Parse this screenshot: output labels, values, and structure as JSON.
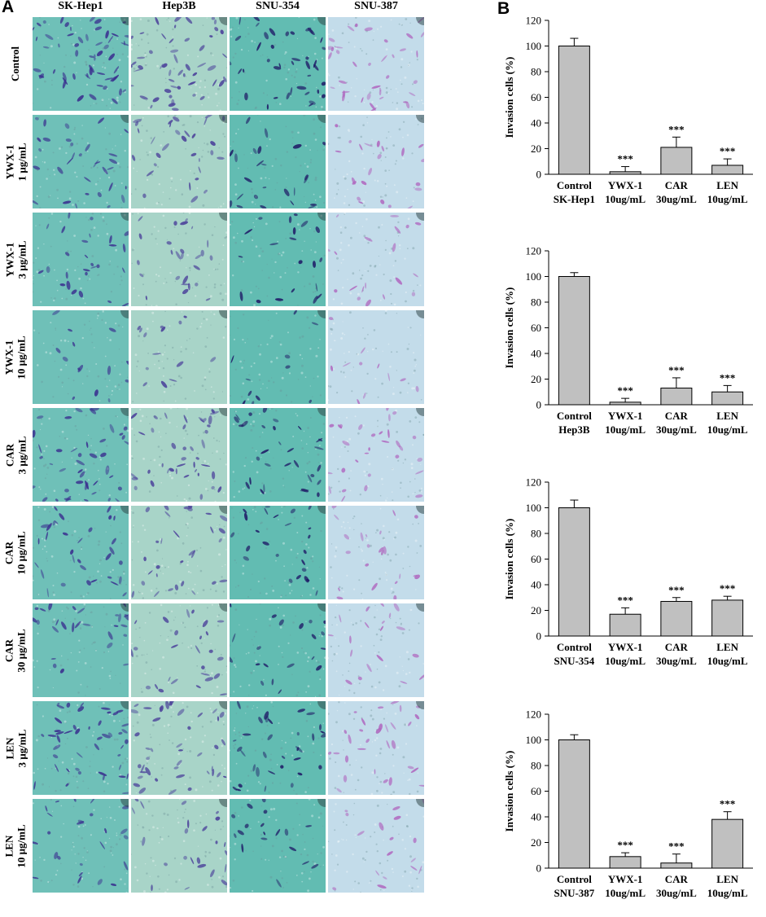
{
  "panels": {
    "a": "A",
    "b": "B"
  },
  "micrographs": {
    "columns": [
      {
        "label": "SK-Hep1",
        "tint": "#6fc0b8",
        "stain": "#3a2f8f",
        "density": 0.85
      },
      {
        "label": "Hep3B",
        "tint": "#a8d4c8",
        "stain": "#4a3f9a",
        "density": 0.8
      },
      {
        "label": "SNU-354",
        "tint": "#62bcb2",
        "stain": "#1f1a66",
        "density": 0.6
      },
      {
        "label": "SNU-387",
        "tint": "#c3dcea",
        "stain": "#b06ac0",
        "density": 0.55
      }
    ],
    "rows": [
      {
        "label": [
          "Control"
        ],
        "level": 1.0
      },
      {
        "label": [
          "YWX-1",
          "1 μg/mL"
        ],
        "level": 0.55
      },
      {
        "label": [
          "YWX-1",
          "3 μg/mL"
        ],
        "level": 0.45
      },
      {
        "label": [
          "YWX-1",
          "10 μg/mL"
        ],
        "level": 0.2
      },
      {
        "label": [
          "CAR",
          "3 μg/mL"
        ],
        "level": 0.75
      },
      {
        "label": [
          "CAR",
          "10 μg/mL"
        ],
        "level": 0.55
      },
      {
        "label": [
          "CAR",
          "30 μg/mL"
        ],
        "level": 0.45
      },
      {
        "label": [
          "LEN",
          "3 μg/mL"
        ],
        "level": 0.8
      },
      {
        "label": [
          "LEN",
          "10 μg/mL"
        ],
        "level": 0.4
      }
    ]
  },
  "chart_data": [
    {
      "type": "bar",
      "ylabel": "Invasion cells  (%)",
      "ylim": [
        0,
        120
      ],
      "yticks": [
        0,
        20,
        40,
        60,
        80,
        100,
        120
      ],
      "categories": [
        [
          "Control",
          "SK-Hep1"
        ],
        [
          "YWX-1",
          "10ug/mL"
        ],
        [
          "CAR",
          "30ug/mL"
        ],
        [
          "LEN",
          "10ug/mL"
        ]
      ],
      "values": [
        100,
        2,
        21,
        7
      ],
      "errors": [
        6,
        4,
        8,
        5
      ],
      "annotations": [
        "",
        "***",
        "***",
        "***"
      ],
      "bar_color": "#c0c0c0"
    },
    {
      "type": "bar",
      "ylabel": "Invasion cells  (%)",
      "ylim": [
        0,
        120
      ],
      "yticks": [
        0,
        20,
        40,
        60,
        80,
        100,
        120
      ],
      "categories": [
        [
          "Control",
          "Hep3B"
        ],
        [
          "YWX-1",
          "10ug/mL"
        ],
        [
          "CAR",
          "30ug/mL"
        ],
        [
          "LEN",
          "10ug/mL"
        ]
      ],
      "values": [
        100,
        2,
        13,
        10
      ],
      "errors": [
        3,
        3,
        8,
        5
      ],
      "annotations": [
        "",
        "***",
        "***",
        "***"
      ],
      "bar_color": "#c0c0c0"
    },
    {
      "type": "bar",
      "ylabel": "Invasion cells  (%)",
      "ylim": [
        0,
        120
      ],
      "yticks": [
        0,
        20,
        40,
        60,
        80,
        100,
        120
      ],
      "categories": [
        [
          "Control",
          "SNU-354"
        ],
        [
          "YWX-1",
          "10ug/mL"
        ],
        [
          "CAR",
          "30ug/mL"
        ],
        [
          "LEN",
          "10ug/mL"
        ]
      ],
      "values": [
        100,
        17,
        27,
        28
      ],
      "errors": [
        6,
        5,
        3,
        3
      ],
      "annotations": [
        "",
        "***",
        "***",
        "***"
      ],
      "bar_color": "#c0c0c0"
    },
    {
      "type": "bar",
      "ylabel": "Invasion cells  (%)",
      "ylim": [
        0,
        120
      ],
      "yticks": [
        0,
        20,
        40,
        60,
        80,
        100,
        120
      ],
      "categories": [
        [
          "Control",
          "SNU-387"
        ],
        [
          "YWX-1",
          "10ug/mL"
        ],
        [
          "CAR",
          "30ug/mL"
        ],
        [
          "LEN",
          "10ug/mL"
        ]
      ],
      "values": [
        100,
        9,
        4,
        38
      ],
      "errors": [
        4,
        3,
        7,
        6
      ],
      "annotations": [
        "",
        "***",
        "***",
        "***"
      ],
      "bar_color": "#c0c0c0"
    }
  ]
}
